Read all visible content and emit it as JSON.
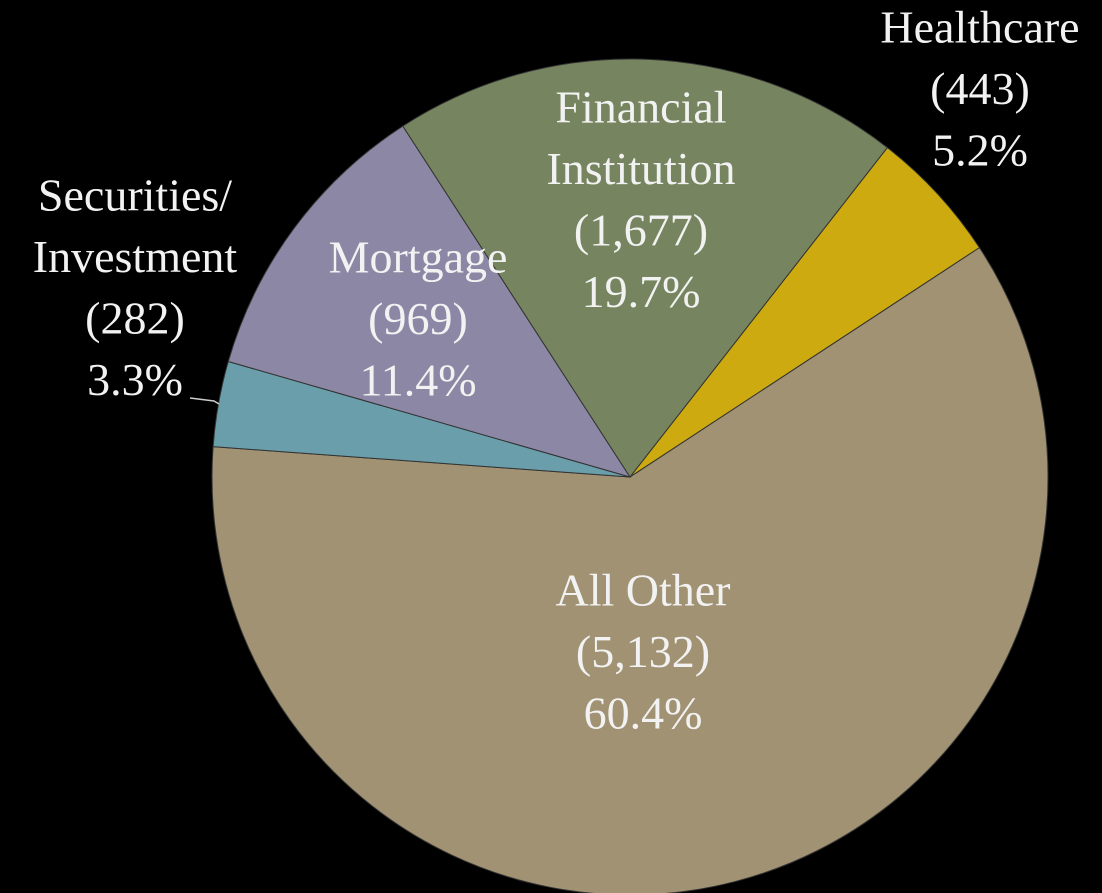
{
  "chart_data": {
    "type": "pie",
    "categories": [
      [
        "Healthcare"
      ],
      [
        "All Other"
      ],
      [
        "Securities/",
        "Investment"
      ],
      [
        "Mortgage"
      ],
      [
        "Financial",
        "Institution"
      ]
    ],
    "values": [
      5.2,
      60.4,
      3.3,
      11.4,
      19.7
    ],
    "value_labels": [
      "5.2%",
      "60.4%",
      "3.3%",
      "11.4%",
      "19.7%"
    ],
    "counts": [
      443,
      5132,
      282,
      969,
      1677
    ],
    "count_labels": [
      "(443)",
      "(5,132)",
      "(282)",
      "(969)",
      "(1,677)"
    ],
    "colors": [
      "#cdaa10",
      "#a09272",
      "#6a9eab",
      "#8c87a5",
      "#76855f"
    ]
  }
}
